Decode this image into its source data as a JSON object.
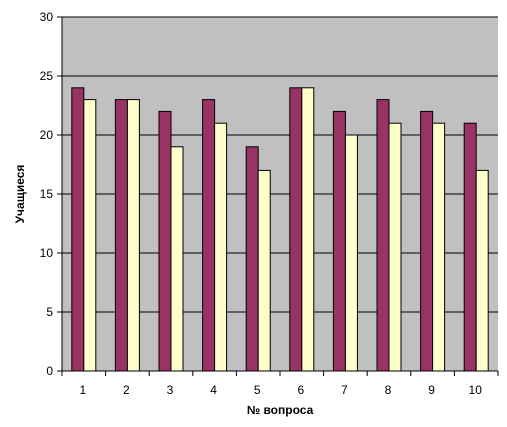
{
  "chart_data": {
    "type": "bar",
    "categories": [
      "1",
      "2",
      "3",
      "4",
      "5",
      "6",
      "7",
      "8",
      "9",
      "10"
    ],
    "series": [
      {
        "values": [
          24,
          23,
          22,
          23,
          19,
          24,
          22,
          23,
          22,
          21
        ],
        "color": "#993366"
      },
      {
        "values": [
          23,
          23,
          19,
          21,
          17,
          24,
          20,
          21,
          21,
          17
        ],
        "color": "#FFFFCC"
      }
    ],
    "title": "",
    "xlabel": "№ вопроса",
    "ylabel": "Учащиеся",
    "ylim": [
      0,
      30
    ],
    "yticks": [
      0,
      5,
      10,
      15,
      20,
      25,
      30
    ],
    "grid": true,
    "legend": "none",
    "plot_background": "#C0C0C0"
  }
}
